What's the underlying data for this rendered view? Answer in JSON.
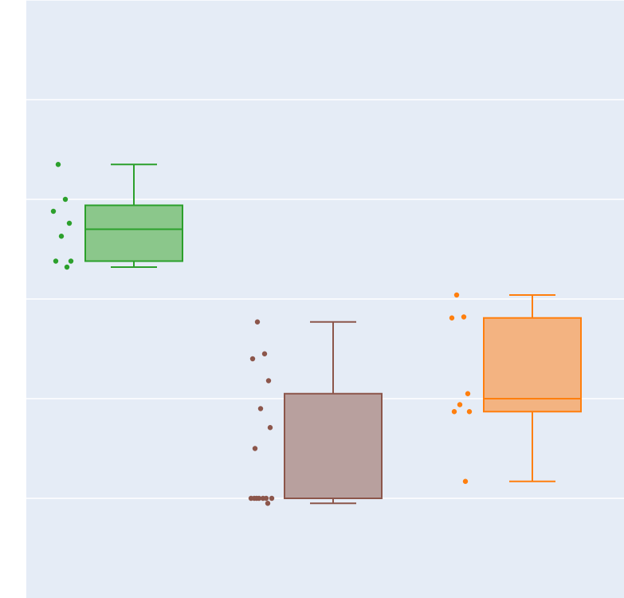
{
  "chart_data": {
    "type": "box",
    "title": "",
    "xlabel": "",
    "ylabel": "",
    "ylim": [
      -1,
      5
    ],
    "gridlines": [
      0,
      1,
      2,
      3,
      4,
      5
    ],
    "grid": true,
    "legend": "none",
    "background": "#e5ecf6",
    "series": [
      {
        "name": "",
        "color": "#2ca02c",
        "fill": "#8bc78b",
        "box": {
          "min": 2.32,
          "q1": 2.38,
          "median": 2.7,
          "q3": 2.94,
          "max": 3.35
        },
        "points": [
          3.35,
          3.0,
          2.88,
          2.76,
          2.63,
          2.38,
          2.38,
          2.32
        ]
      },
      {
        "name": "",
        "color": "#8c564b",
        "fill": "#b8a09e",
        "box": {
          "min": -0.05,
          "q1": 0.0,
          "median": 0.0,
          "q3": 1.05,
          "max": 1.77
        },
        "points": [
          1.77,
          1.45,
          1.4,
          1.18,
          0.9,
          0.71,
          0.5,
          0.0,
          0.0,
          0.0,
          0.0,
          0.0,
          0.0,
          0.0,
          -0.05
        ]
      },
      {
        "name": "",
        "color": "#ff7f0e",
        "fill": "#f3b381",
        "box": {
          "min": 0.17,
          "q1": 0.87,
          "median": 1.0,
          "q3": 1.81,
          "max": 2.04
        },
        "points": [
          2.04,
          1.82,
          1.81,
          1.05,
          0.94,
          0.87,
          0.87,
          0.17
        ]
      }
    ]
  }
}
